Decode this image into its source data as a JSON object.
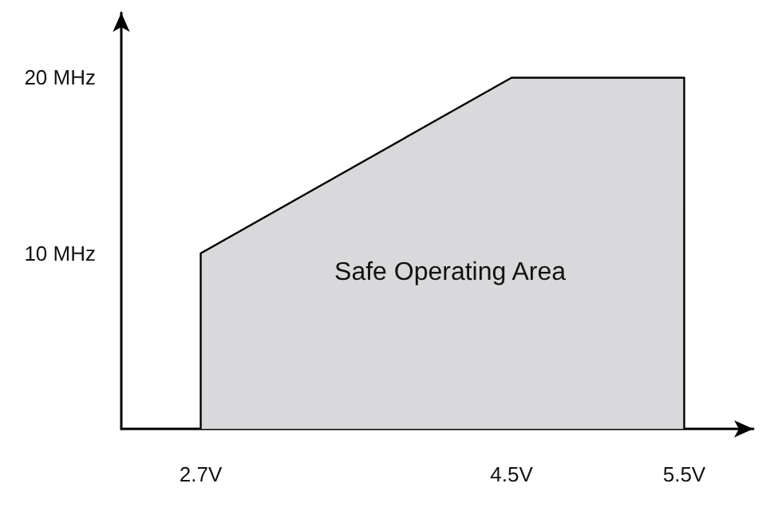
{
  "chart_data": {
    "type": "area",
    "x": [
      2.7,
      2.7,
      4.5,
      5.5,
      5.5
    ],
    "series": [
      {
        "color": "#d9d9db",
        "values": [
          0,
          10,
          20,
          20,
          0
        ]
      }
    ],
    "xlim": [
      2.24,
      5.9
    ],
    "ylim": [
      0,
      23.7
    ],
    "xticks": [
      {
        "value": 2.7,
        "label": "2.7V"
      },
      {
        "value": 4.5,
        "label": "4.5V"
      },
      {
        "value": 5.5,
        "label": "5.5V"
      }
    ],
    "yticks": [
      {
        "value": 10,
        "label": "10 MHz"
      },
      {
        "value": 20,
        "label": "20 MHz"
      }
    ],
    "annotations": [
      "Safe Operating Area"
    ],
    "grid": false,
    "marker": "none",
    "line_style": "solid"
  }
}
